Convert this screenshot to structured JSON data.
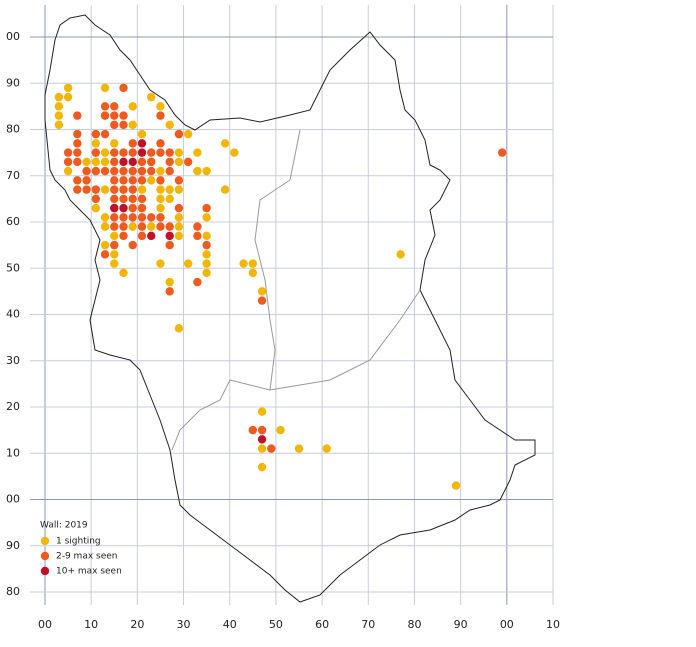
{
  "chart_data": {
    "type": "scatter",
    "legend_title": "Wall:  2019",
    "xlim": [
      0,
      110
    ],
    "ylim": [
      -20,
      100
    ],
    "xticks": [
      {
        "value": 0,
        "label": "00"
      },
      10,
      20,
      30,
      40,
      50,
      60,
      70,
      80,
      90,
      {
        "value": 100,
        "label": "00"
      },
      {
        "value": 110,
        "label": "10"
      }
    ],
    "yticks": [
      {
        "value": 100,
        "label": "00"
      },
      90,
      80,
      70,
      60,
      50,
      40,
      30,
      20,
      10,
      {
        "value": 0,
        "label": "00"
      },
      {
        "value": -10,
        "label": "90"
      },
      {
        "value": -20,
        "label": "80"
      }
    ],
    "grid": true,
    "legend": "lower left",
    "series": [
      {
        "name": "1 sighting",
        "color": "#f2b705",
        "x": [
          5,
          3,
          5,
          13,
          3,
          3,
          3,
          19,
          23,
          25,
          27,
          29,
          31,
          13,
          19,
          21,
          11,
          15,
          13,
          13,
          9,
          11,
          5,
          29,
          29,
          33,
          35,
          39,
          41,
          39,
          23,
          25,
          21,
          23,
          25,
          27,
          29,
          25,
          27,
          25,
          21,
          13,
          13,
          15,
          13,
          15,
          15,
          17,
          25,
          31,
          27,
          29,
          29,
          29,
          35,
          35,
          35,
          35,
          35,
          43,
          45,
          45,
          47,
          29,
          77,
          47,
          51,
          47,
          55,
          61,
          47,
          89,
          33,
          19,
          11,
          17,
          21,
          13,
          23
        ],
        "values": [
          89,
          87,
          87,
          89,
          85,
          83,
          81,
          85,
          87,
          85,
          81,
          79,
          79,
          83,
          81,
          79,
          77,
          77,
          75,
          73,
          73,
          73,
          71,
          75,
          73,
          75,
          71,
          77,
          75,
          67,
          73,
          71,
          71,
          69,
          67,
          67,
          67,
          65,
          65,
          63,
          63,
          61,
          59,
          57,
          55,
          53,
          51,
          49,
          51,
          51,
          47,
          57,
          59,
          61,
          61,
          57,
          53,
          51,
          49,
          51,
          51,
          49,
          45,
          37,
          53,
          19,
          15,
          11,
          11,
          11,
          7,
          3,
          71,
          59,
          63,
          67,
          67,
          67,
          59
        ]
      },
      {
        "name": "2-9 max seen",
        "color": "#ef5a1f",
        "x": [
          17,
          25,
          29,
          7,
          13,
          15,
          13,
          15,
          15,
          17,
          17,
          11,
          13,
          7,
          7,
          11,
          5,
          7,
          5,
          7,
          15,
          17,
          19,
          23,
          25,
          27,
          25,
          19,
          23,
          27,
          31,
          15,
          15,
          17,
          19,
          9,
          11,
          13,
          21,
          23,
          27,
          7,
          9,
          15,
          17,
          19,
          21,
          7,
          9,
          11,
          15,
          17,
          19,
          15,
          17,
          19,
          21,
          15,
          19,
          21,
          29,
          35,
          15,
          17,
          19,
          21,
          23,
          25,
          15,
          17,
          21,
          25,
          27,
          19,
          27,
          33,
          33,
          13,
          15,
          35,
          33,
          27,
          47,
          99,
          45,
          47,
          49,
          21,
          11,
          25,
          29,
          17,
          21
        ],
        "values": [
          89,
          83,
          79,
          83,
          85,
          85,
          83,
          83,
          81,
          81,
          83,
          79,
          79,
          79,
          77,
          75,
          75,
          75,
          73,
          73,
          75,
          75,
          75,
          75,
          75,
          75,
          77,
          77,
          73,
          73,
          73,
          73,
          71,
          71,
          71,
          71,
          71,
          71,
          71,
          71,
          71,
          69,
          69,
          69,
          69,
          69,
          69,
          67,
          67,
          67,
          67,
          67,
          67,
          65,
          65,
          65,
          65,
          63,
          63,
          63,
          63,
          63,
          61,
          61,
          61,
          61,
          61,
          61,
          59,
          59,
          59,
          59,
          59,
          55,
          55,
          59,
          57,
          53,
          55,
          55,
          47,
          45,
          43,
          75,
          15,
          15,
          11,
          73,
          65,
          69,
          69,
          57,
          57
        ]
      },
      {
        "name": "10+ max seen",
        "color": "#c0102a",
        "x": [
          21,
          21,
          17,
          19,
          15,
          17,
          23,
          27,
          47
        ],
        "values": [
          77,
          75,
          73,
          73,
          63,
          63,
          57,
          57,
          13
        ]
      }
    ]
  }
}
